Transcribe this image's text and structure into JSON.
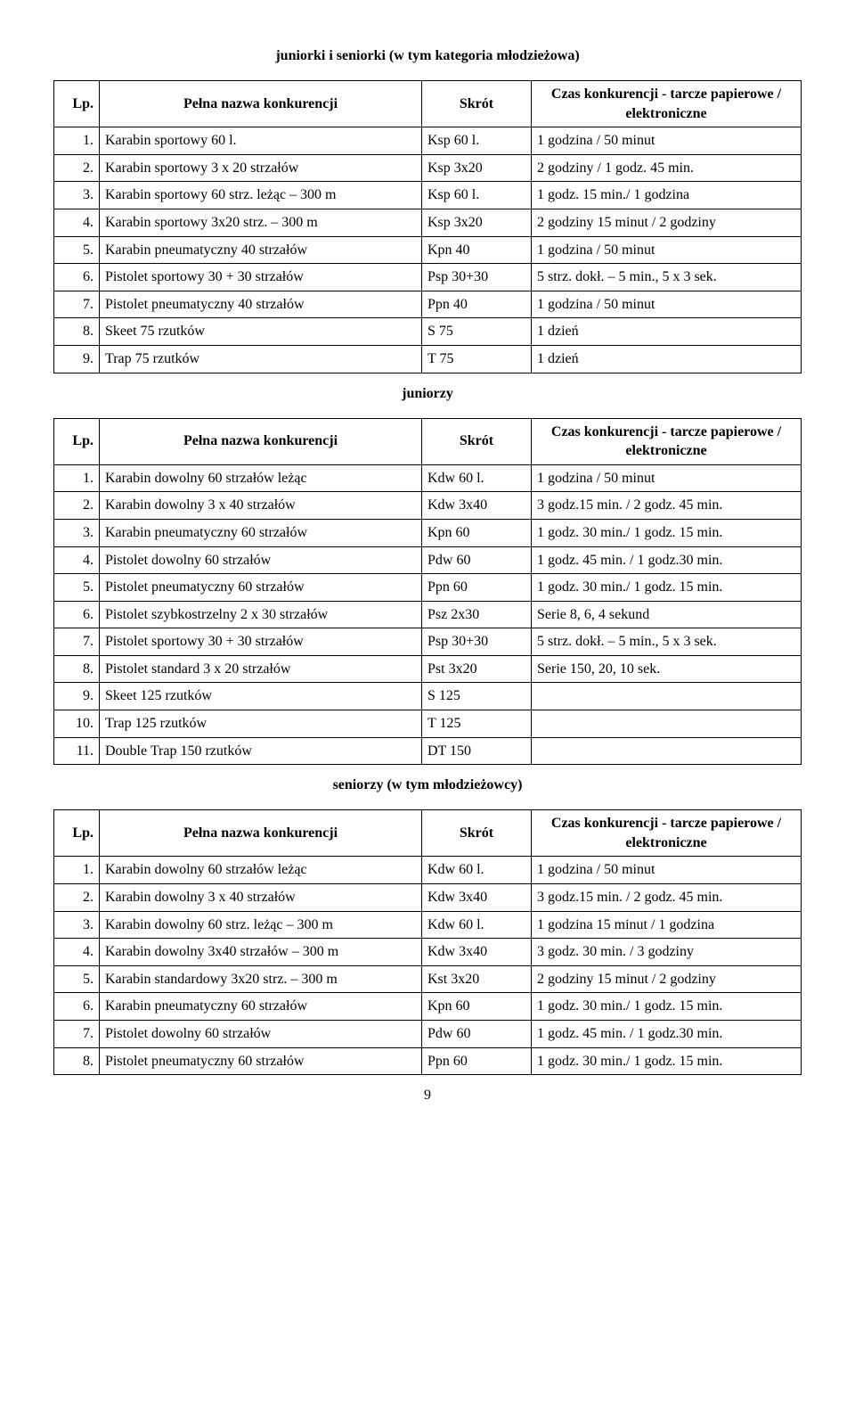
{
  "section1": {
    "heading": "juniorki i seniorki (w tym kategoria młodzieżowa)",
    "columns": {
      "lp": "Lp.",
      "name": "Pełna nazwa konkurencji",
      "skrot": "Skrót",
      "czas": "Czas konkurencji - tarcze papierowe / elektroniczne"
    },
    "rows": [
      {
        "lp": "1.",
        "name": "Karabin sportowy 60 l.",
        "skrot": "Ksp 60 l.",
        "czas": "1 godzina / 50 minut"
      },
      {
        "lp": "2.",
        "name": "Karabin sportowy 3 x 20 strzałów",
        "skrot": "Ksp 3x20",
        "czas": "2 godziny / 1 godz. 45 min."
      },
      {
        "lp": "3.",
        "name": "Karabin sportowy 60 strz. leżąc – 300 m",
        "skrot": "Ksp 60 l.",
        "czas": "1 godz. 15 min./ 1 godzina"
      },
      {
        "lp": "4.",
        "name": "Karabin sportowy 3x20 strz. – 300 m",
        "skrot": "Ksp 3x20",
        "czas": "2 godziny 15 minut / 2 godziny"
      },
      {
        "lp": "5.",
        "name": "Karabin pneumatyczny 40 strzałów",
        "skrot": "Kpn 40",
        "czas": "1 godzina / 50 minut"
      },
      {
        "lp": "6.",
        "name": "Pistolet sportowy 30 + 30 strzałów",
        "skrot": "Psp 30+30",
        "czas": "5 strz. dokł. – 5 min., 5 x 3 sek."
      },
      {
        "lp": "7.",
        "name": "Pistolet pneumatyczny 40 strzałów",
        "skrot": "Ppn 40",
        "czas": "1 godzina / 50 minut"
      },
      {
        "lp": "8.",
        "name": "Skeet 75 rzutków",
        "skrot": "S 75",
        "czas": "1 dzień"
      },
      {
        "lp": "9.",
        "name": "Trap 75 rzutków",
        "skrot": "T 75",
        "czas": "1 dzień"
      }
    ]
  },
  "section2": {
    "heading": "juniorzy",
    "columns": {
      "lp": "Lp.",
      "name": "Pełna nazwa konkurencji",
      "skrot": "Skrót",
      "czas": "Czas konkurencji - tarcze papierowe / elektroniczne"
    },
    "rows": [
      {
        "lp": "1.",
        "name": "Karabin dowolny 60 strzałów leżąc",
        "skrot": "Kdw 60 l.",
        "czas": "1 godzina / 50 minut"
      },
      {
        "lp": "2.",
        "name": "Karabin dowolny 3 x 40 strzałów",
        "skrot": "Kdw 3x40",
        "czas": "3 godz.15 min. / 2 godz. 45 min."
      },
      {
        "lp": "3.",
        "name": "Karabin pneumatyczny 60 strzałów",
        "skrot": "Kpn 60",
        "czas": "1 godz. 30 min./ 1 godz. 15 min."
      },
      {
        "lp": "4.",
        "name": "Pistolet dowolny 60 strzałów",
        "skrot": "Pdw 60",
        "czas": "1 godz. 45 min. / 1 godz.30 min."
      },
      {
        "lp": "5.",
        "name": "Pistolet pneumatyczny 60 strzałów",
        "skrot": "Ppn 60",
        "czas": "1 godz. 30 min./ 1 godz. 15 min."
      },
      {
        "lp": "6.",
        "name": "Pistolet szybkostrzelny 2 x 30 strzałów",
        "skrot": "Psz 2x30",
        "czas": "Serie 8, 6, 4 sekund"
      },
      {
        "lp": "7.",
        "name": "Pistolet sportowy 30 + 30 strzałów",
        "skrot": "Psp 30+30",
        "czas": "5 strz. dokł. – 5 min., 5 x 3 sek."
      },
      {
        "lp": "8.",
        "name": "Pistolet standard 3 x 20 strzałów",
        "skrot": "Pst 3x20",
        "czas": "Serie 150, 20, 10 sek."
      },
      {
        "lp": "9.",
        "name": "Skeet 125 rzutków",
        "skrot": "S 125",
        "czas": ""
      },
      {
        "lp": "10.",
        "name": "Trap 125 rzutków",
        "skrot": "T 125",
        "czas": ""
      },
      {
        "lp": "11.",
        "name": "Double Trap 150 rzutków",
        "skrot": "DT 150",
        "czas": ""
      }
    ]
  },
  "section3": {
    "heading": "seniorzy (w tym młodzieżowcy)",
    "columns": {
      "lp": "Lp.",
      "name": "Pełna nazwa konkurencji",
      "skrot": "Skrót",
      "czas": "Czas konkurencji - tarcze papierowe / elektroniczne"
    },
    "rows": [
      {
        "lp": "1.",
        "name": "Karabin dowolny 60 strzałów leżąc",
        "skrot": "Kdw 60 l.",
        "czas": "1 godzina / 50 minut"
      },
      {
        "lp": "2.",
        "name": "Karabin dowolny 3 x 40 strzałów",
        "skrot": "Kdw 3x40",
        "czas": "3 godz.15 min. / 2 godz. 45 min."
      },
      {
        "lp": "3.",
        "name": "Karabin dowolny 60 strz. leżąc – 300 m",
        "skrot": "Kdw 60 l.",
        "czas": "1 godzina 15 minut / 1 godzina"
      },
      {
        "lp": "4.",
        "name": "Karabin dowolny 3x40 strzałów – 300 m",
        "skrot": "Kdw 3x40",
        "czas": "3 godz. 30 min. / 3 godziny"
      },
      {
        "lp": "5.",
        "name": "Karabin standardowy 3x20 strz. – 300 m",
        "skrot": "Kst 3x20",
        "czas": "2 godziny 15 minut / 2 godziny"
      },
      {
        "lp": "6.",
        "name": "Karabin pneumatyczny 60 strzałów",
        "skrot": "Kpn 60",
        "czas": "1 godz. 30 min./ 1 godz. 15 min."
      },
      {
        "lp": "7.",
        "name": "Pistolet dowolny 60 strzałów",
        "skrot": "Pdw 60",
        "czas": "1 godz. 45 min. / 1 godz.30 min."
      },
      {
        "lp": "8.",
        "name": "Pistolet pneumatyczny 60 strzałów",
        "skrot": "Ppn 60",
        "czas": "1 godz. 30 min./ 1 godz. 15 min."
      }
    ]
  },
  "page_number": "9"
}
